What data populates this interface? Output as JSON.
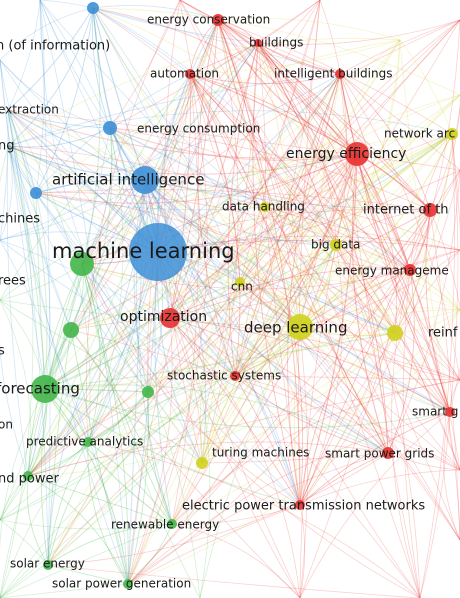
{
  "clusters": {
    "blue": "#3d8fd6",
    "red": "#e8312f",
    "green": "#43b649",
    "yellow": "#cfd21d"
  },
  "nodes": [
    {
      "id": "n-machine-learning",
      "label": "machine learning",
      "cluster": "blue",
      "weight": 10
    },
    {
      "id": "n-artificial-intelligence",
      "label": "artificial intelligence",
      "cluster": "blue",
      "weight": 5
    },
    {
      "id": "n-retrieval",
      "label": "n (of information)",
      "cluster": "blue",
      "weight": 3
    },
    {
      "id": "n-extraction",
      "label": "extraction",
      "cluster": "blue",
      "weight": 2
    },
    {
      "id": "n-ng",
      "label": "ng",
      "cluster": "blue",
      "weight": 2
    },
    {
      "id": "n-chines",
      "label": "chines",
      "cluster": "blue",
      "weight": 2
    },
    {
      "id": "n-energy-consumption",
      "label": "energy consumption",
      "cluster": "blue",
      "weight": 2
    },
    {
      "id": "n-energy-conservation",
      "label": "energy conservation",
      "cluster": "red",
      "weight": 2
    },
    {
      "id": "n-buildings",
      "label": "buildings",
      "cluster": "red",
      "weight": 2
    },
    {
      "id": "n-automation",
      "label": "automation",
      "cluster": "red",
      "weight": 2
    },
    {
      "id": "n-intelligent-buildings",
      "label": "intelligent buildings",
      "cluster": "red",
      "weight": 2
    },
    {
      "id": "n-energy-efficiency",
      "label": "energy efficiency",
      "cluster": "red",
      "weight": 5
    },
    {
      "id": "n-internet-of-things",
      "label": "internet of th",
      "cluster": "red",
      "weight": 3
    },
    {
      "id": "n-energy-management",
      "label": "energy manageme",
      "cluster": "red",
      "weight": 3
    },
    {
      "id": "n-optimization",
      "label": "optimization",
      "cluster": "red",
      "weight": 3
    },
    {
      "id": "n-stochastic-systems",
      "label": "stochastic systems",
      "cluster": "red",
      "weight": 2
    },
    {
      "id": "n-smart-grid",
      "label": "smart g",
      "cluster": "red",
      "weight": 2
    },
    {
      "id": "n-smart-power-grids",
      "label": "smart power grids",
      "cluster": "red",
      "weight": 2
    },
    {
      "id": "n-electric-power",
      "label": "electric power transmission networks",
      "cluster": "red",
      "weight": 2
    },
    {
      "id": "n-data-handling",
      "label": "data handling",
      "cluster": "yellow",
      "weight": 2
    },
    {
      "id": "n-big-data",
      "label": "big data",
      "cluster": "yellow",
      "weight": 2
    },
    {
      "id": "n-cnn",
      "label": "cnn",
      "cluster": "yellow",
      "weight": 2
    },
    {
      "id": "n-deep-learning",
      "label": "deep learning",
      "cluster": "yellow",
      "weight": 5
    },
    {
      "id": "n-reinforcement",
      "label": "reinf",
      "cluster": "yellow",
      "weight": 3
    },
    {
      "id": "n-network-arch",
      "label": "network arc",
      "cluster": "yellow",
      "weight": 2
    },
    {
      "id": "n-turing-machines",
      "label": "turing machines",
      "cluster": "yellow",
      "weight": 2
    },
    {
      "id": "n-trees",
      "label": "rees",
      "cluster": "green",
      "weight": 2
    },
    {
      "id": "n-s",
      "label": "s",
      "cluster": "green",
      "weight": 2
    },
    {
      "id": "n-forecasting",
      "label": "forecasting",
      "cluster": "green",
      "weight": 5
    },
    {
      "id": "n-on",
      "label": "on",
      "cluster": "green",
      "weight": 2
    },
    {
      "id": "n-predictive-analytics",
      "label": "predictive analytics",
      "cluster": "green",
      "weight": 3
    },
    {
      "id": "n-wind-power",
      "label": "nd power",
      "cluster": "green",
      "weight": 2
    },
    {
      "id": "n-renewable-energy",
      "label": "renewable energy",
      "cluster": "green",
      "weight": 2
    },
    {
      "id": "n-solar-energy",
      "label": "solar energy",
      "cluster": "green",
      "weight": 2
    },
    {
      "id": "n-solar-power-generation",
      "label": "solar power generation",
      "cluster": "green",
      "weight": 2
    }
  ]
}
